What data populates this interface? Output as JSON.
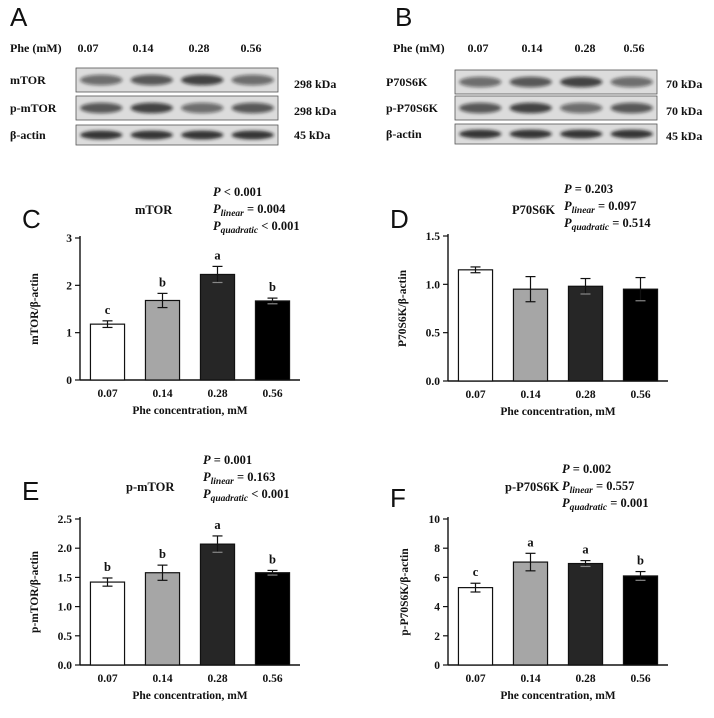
{
  "blots": [
    {
      "letter": "A",
      "phe_label": "Phe (mM)",
      "lanes": [
        "0.07",
        "0.14",
        "0.28",
        "0.56"
      ],
      "rows": [
        {
          "protein": "mTOR",
          "kda": "298 kDa"
        },
        {
          "protein": "p-mTOR",
          "kda": "298 kDa"
        },
        {
          "protein": "β-actin",
          "kda": "45 kDa"
        }
      ]
    },
    {
      "letter": "B",
      "phe_label": "Phe (mM)",
      "lanes": [
        "0.07",
        "0.14",
        "0.28",
        "0.56"
      ],
      "rows": [
        {
          "protein": "P70S6K",
          "kda": "70 kDa"
        },
        {
          "protein": "p-P70S6K",
          "kda": "70 kDa"
        },
        {
          "protein": "β-actin",
          "kda": "45 kDa"
        }
      ]
    }
  ],
  "chart_data": [
    {
      "type": "bar",
      "letter": "C",
      "title": "mTOR",
      "ylabel": "mTOR/β-actin",
      "xlabel": "Phe concentration, mM",
      "categories": [
        "0.07",
        "0.14",
        "0.28",
        "0.56"
      ],
      "values": [
        1.18,
        1.68,
        2.23,
        1.67
      ],
      "errors": [
        0.07,
        0.15,
        0.17,
        0.06
      ],
      "letters": [
        "c",
        "b",
        "a",
        "b"
      ],
      "ylim": [
        0,
        3
      ],
      "yticks": [
        "0",
        "1",
        "2",
        "3"
      ],
      "ytick_values": [
        0,
        1,
        2,
        3
      ],
      "stats": [
        {
          "sym": "P",
          "sub": "",
          "rest": " < 0.001"
        },
        {
          "sym": "P",
          "sub": "linear",
          "rest": " = 0.004"
        },
        {
          "sym": "P",
          "sub": "quadratic",
          "rest": " < 0.001"
        }
      ],
      "colors": [
        "#ffffff",
        "#a6a6a6",
        "#262626",
        "#000000"
      ]
    },
    {
      "type": "bar",
      "letter": "D",
      "title": "P70S6K",
      "ylabel": "P70S6K/β-actin",
      "xlabel": "Phe concentration, mM",
      "categories": [
        "0.07",
        "0.14",
        "0.28",
        "0.56"
      ],
      "values": [
        1.15,
        0.95,
        0.98,
        0.95
      ],
      "errors": [
        0.03,
        0.13,
        0.08,
        0.12
      ],
      "letters": [
        "",
        "",
        "",
        ""
      ],
      "ylim": [
        0,
        1.5
      ],
      "yticks": [
        "0.0",
        "0.5",
        "1.0",
        "1.5"
      ],
      "ytick_values": [
        0,
        0.5,
        1.0,
        1.5
      ],
      "stats": [
        {
          "sym": "P",
          "sub": "",
          "rest": " = 0.203"
        },
        {
          "sym": "P",
          "sub": "linear",
          "rest": " = 0.097"
        },
        {
          "sym": "P",
          "sub": "quadratic",
          "rest": " = 0.514"
        }
      ],
      "colors": [
        "#ffffff",
        "#a6a6a6",
        "#262626",
        "#000000"
      ]
    },
    {
      "type": "bar",
      "letter": "E",
      "title": "p-mTOR",
      "ylabel": "p-mTOR/β-actin",
      "xlabel": "Phe concentration, mM",
      "categories": [
        "0.07",
        "0.14",
        "0.28",
        "0.56"
      ],
      "values": [
        1.42,
        1.58,
        2.07,
        1.58
      ],
      "errors": [
        0.07,
        0.13,
        0.14,
        0.04
      ],
      "letters": [
        "b",
        "b",
        "a",
        "b"
      ],
      "ylim": [
        0,
        2.5
      ],
      "yticks": [
        "0.0",
        "0.5",
        "1.0",
        "1.5",
        "2.0",
        "2.5"
      ],
      "ytick_values": [
        0,
        0.5,
        1.0,
        1.5,
        2.0,
        2.5
      ],
      "stats": [
        {
          "sym": "P",
          "sub": "",
          "rest": " = 0.001"
        },
        {
          "sym": "P",
          "sub": "linear",
          "rest": " = 0.163"
        },
        {
          "sym": "P",
          "sub": "quadratic",
          "rest": " < 0.001"
        }
      ],
      "colors": [
        "#ffffff",
        "#a6a6a6",
        "#262626",
        "#000000"
      ]
    },
    {
      "type": "bar",
      "letter": "F",
      "title": "p-P70S6K",
      "ylabel": "p-P70S6K/β-actin",
      "xlabel": "Phe concentration, mM",
      "categories": [
        "0.07",
        "0.14",
        "0.28",
        "0.56"
      ],
      "values": [
        5.3,
        7.05,
        6.95,
        6.1
      ],
      "errors": [
        0.3,
        0.6,
        0.2,
        0.3
      ],
      "letters": [
        "c",
        "a",
        "a",
        "b"
      ],
      "ylim": [
        0,
        10
      ],
      "yticks": [
        "0",
        "2",
        "4",
        "6",
        "8",
        "10"
      ],
      "ytick_values": [
        0,
        2,
        4,
        6,
        8,
        10
      ],
      "stats": [
        {
          "sym": "P",
          "sub": "",
          "rest": " = 0.002"
        },
        {
          "sym": "P",
          "sub": "linear",
          "rest": " = 0.557"
        },
        {
          "sym": "P",
          "sub": "quadratic",
          "rest": " = 0.001"
        }
      ],
      "colors": [
        "#ffffff",
        "#a6a6a6",
        "#262626",
        "#000000"
      ]
    }
  ]
}
